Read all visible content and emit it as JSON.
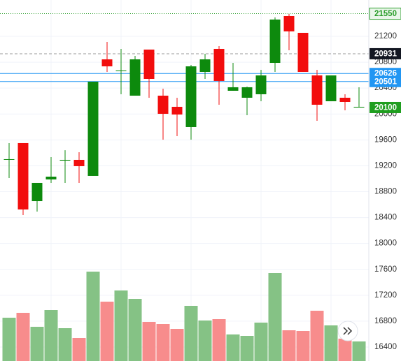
{
  "chart_data": {
    "type": "candlestick",
    "open": [
      19291,
      19550,
      18654,
      18989,
      19280,
      19291,
      19043,
      20844,
      20661,
      20283,
      20995,
      20283,
      20111,
      19798,
      20650,
      21006,
      20359,
      20251,
      20305,
      20790,
      21513,
      21254,
      20596,
      20197,
      20251,
      20100
    ],
    "high": [
      19550,
      19550,
      18935,
      19334,
      19441,
      19409,
      20499,
      21114,
      21006,
      20898,
      20995,
      20391,
      20251,
      20758,
      20930,
      21049,
      20790,
      20423,
      20682,
      21492,
      21545,
      21254,
      20682,
      20596,
      20305,
      20413
    ],
    "low": [
      19010,
      18438,
      18492,
      18935,
      18935,
      18935,
      19043,
      20650,
      20305,
      20283,
      20251,
      19603,
      19657,
      19603,
      20542,
      20143,
      20359,
      19981,
      20197,
      20650,
      20984,
      20650,
      19895,
      20197,
      20057,
      20100
    ],
    "close": [
      19302,
      18525,
      18935,
      19032,
      19291,
      19194,
      20499,
      20736,
      20672,
      20844,
      20542,
      20003,
      19992,
      20736,
      20844,
      20510,
      20413,
      20413,
      20596,
      21459,
      21276,
      20650,
      20143,
      20596,
      20186,
      20111
    ],
    "volume": [
      62,
      69,
      49,
      73,
      47,
      33,
      128,
      85,
      101,
      89,
      56,
      53,
      46,
      79,
      58,
      60,
      38,
      36,
      55,
      126,
      44,
      43,
      72,
      51,
      32,
      28
    ],
    "volume_lim": [
      0,
      140
    ],
    "up_color": "#0d8a0d",
    "down_color": "#f20d0d",
    "volume_up_color": "#85c285",
    "volume_down_color": "#f78c8c",
    "ylim": [
      16184,
      21761
    ],
    "yticks": [
      16400,
      16800,
      17200,
      17600,
      18000,
      18400,
      18800,
      19200,
      19600,
      20000,
      20400,
      20800,
      21200
    ],
    "grid": true,
    "price_lines": [
      {
        "value": 21550,
        "color": "#2a9d2a",
        "style": "dotted",
        "label_style": "outline"
      },
      {
        "value": 20931,
        "color": "#131722",
        "style": "dashed",
        "line_color": "#9a9a9a",
        "label_style": "solid"
      },
      {
        "value": 20626,
        "color": "#2196f3",
        "style": "solid",
        "label_style": "solid"
      },
      {
        "value": 20501,
        "color": "#2196f3",
        "style": "solid",
        "label_style": "solid"
      },
      {
        "value": 20100,
        "color": "#1f9e1f",
        "style": "none",
        "label_style": "solid"
      }
    ]
  }
}
